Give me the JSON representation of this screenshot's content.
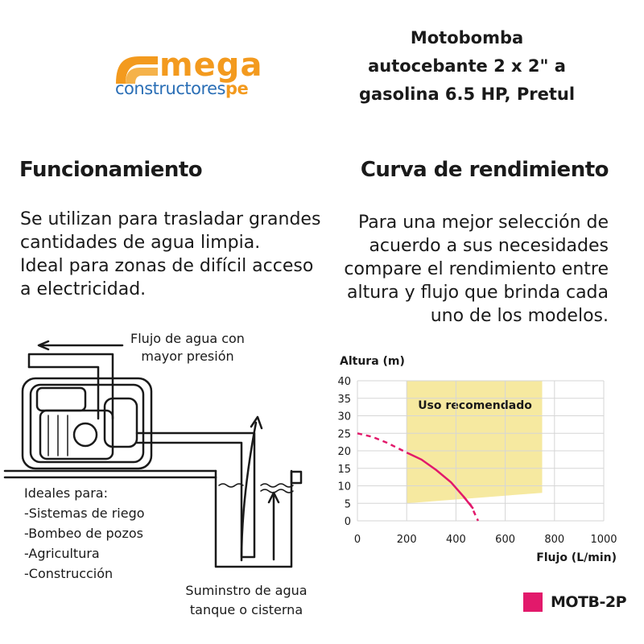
{
  "logo": {
    "word": "mega",
    "sub": "constructores",
    "suffix": "pe"
  },
  "product_title": [
    "Motobomba",
    "autocebante 2 x 2\" a",
    "gasolina 6.5 HP, Pretul"
  ],
  "funcionamiento": {
    "heading": "Funcionamiento",
    "lines": [
      "Se utilizan para trasladar grandes",
      "cantidades de agua limpia.",
      "Ideal para zonas de difícil acceso",
      "a electricidad."
    ]
  },
  "curva": {
    "heading": "Curva de rendimiento",
    "lines": [
      "Para una mejor selección de",
      "acuerdo a sus necesidades",
      "compare el rendimiento entre",
      "altura y flujo que brinda cada",
      "uno de los modelos."
    ]
  },
  "diagram": {
    "flow_label": [
      "Flujo de agua con",
      "mayor presión"
    ],
    "uses_title": "Ideales para:",
    "uses": [
      "-Sistemas de riego",
      "-Bombeo de pozos",
      "-Agricultura",
      "-Construcción"
    ],
    "supply_label": [
      "Suminstro de agua",
      "tanque o cisterna"
    ]
  },
  "colors": {
    "orange": "#f39a1e",
    "blue": "#2b6fb6",
    "magenta": "#e2196b",
    "zone": "#f6e9a0"
  },
  "chart_data": {
    "type": "line",
    "title": "",
    "xlabel": "Flujo (L/min)",
    "ylabel": "Altura (m)",
    "xlim": [
      0,
      1000
    ],
    "ylim": [
      0,
      40
    ],
    "xticks": [
      0,
      200,
      400,
      600,
      800,
      1000
    ],
    "yticks": [
      0,
      5,
      10,
      15,
      20,
      25,
      30,
      35,
      40
    ],
    "zone": {
      "label": "Uso recomendado",
      "x": [
        200,
        750
      ],
      "y_top": 40,
      "y_bottom_left": 5,
      "y_bottom_right": 8
    },
    "series": [
      {
        "name": "MOTB-2P",
        "color": "#e2196b",
        "solid": [
          [
            200,
            19.5
          ],
          [
            260,
            17.5
          ],
          [
            320,
            14.5
          ],
          [
            380,
            11
          ],
          [
            430,
            7
          ],
          [
            470,
            3.5
          ]
        ],
        "dashed_before": [
          [
            0,
            25
          ],
          [
            60,
            24
          ],
          [
            120,
            22.3
          ],
          [
            200,
            19.5
          ]
        ],
        "dashed_after": [
          [
            430,
            7
          ],
          [
            460,
            4.5
          ],
          [
            490,
            0
          ]
        ]
      }
    ]
  }
}
